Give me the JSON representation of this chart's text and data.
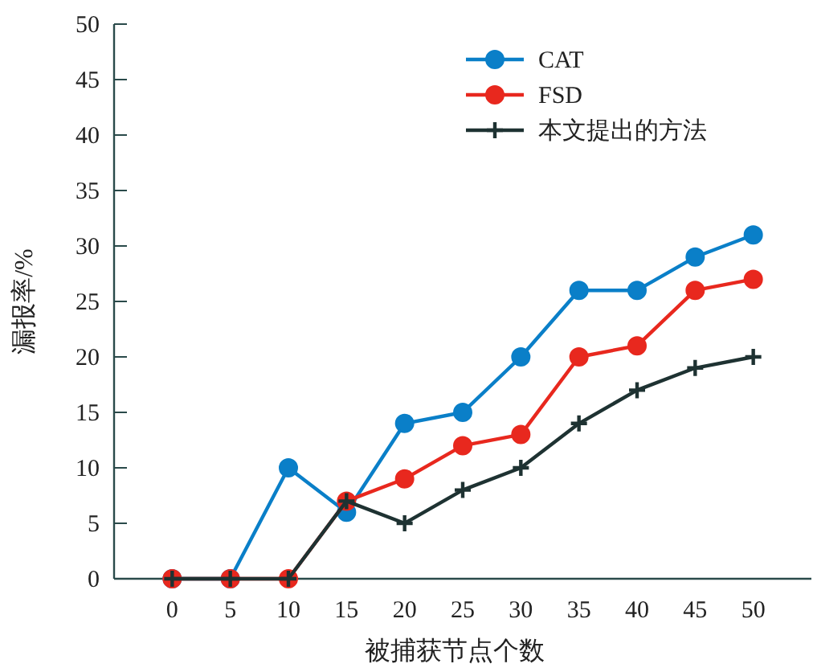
{
  "chart_data": {
    "type": "line",
    "xlabel": "被捕获节点个数",
    "ylabel": "漏报率/%",
    "x": [
      0,
      5,
      10,
      15,
      20,
      25,
      30,
      35,
      40,
      45,
      50
    ],
    "xlim": [
      -5,
      55
    ],
    "xticks": [
      0,
      5,
      10,
      15,
      20,
      25,
      30,
      35,
      40,
      45,
      50
    ],
    "ylim": [
      0,
      50
    ],
    "yticks": [
      0,
      5,
      10,
      15,
      20,
      25,
      30,
      35,
      40,
      45,
      50
    ],
    "grid": false,
    "legend": "top right",
    "series": [
      {
        "name": "CAT",
        "color": "#0a7fc8",
        "marker": "circle",
        "values": [
          0,
          0,
          10,
          6,
          14,
          15,
          20,
          26,
          26,
          29,
          31
        ]
      },
      {
        "name": "FSD",
        "color": "#e8281e",
        "marker": "circle",
        "values": [
          0,
          0,
          0,
          7,
          9,
          12,
          13,
          20,
          21,
          26,
          27
        ]
      },
      {
        "name": "本文提出的方法",
        "color": "#1e3232",
        "marker": "cross",
        "values": [
          0,
          0,
          0,
          7,
          5,
          8,
          10,
          14,
          17,
          19,
          20
        ]
      }
    ]
  }
}
